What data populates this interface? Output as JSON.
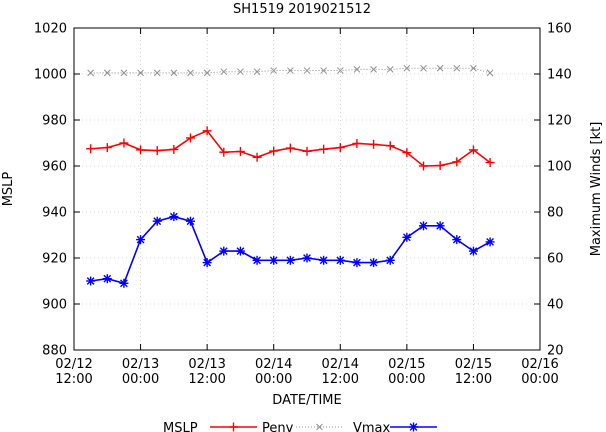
{
  "chart_data": {
    "type": "line",
    "title": "SH1519 2019021512",
    "xlabel": "DATE/TIME",
    "ylabel_left": "MSLP",
    "ylabel_right": "Maximum Winds [kt]",
    "ylim_left": [
      880,
      1020
    ],
    "ylim_right": [
      20,
      160
    ],
    "xlim": [
      0,
      84
    ],
    "yticks_left": [
      880,
      900,
      920,
      940,
      960,
      980,
      1000,
      1020
    ],
    "yticks_right": [
      20,
      40,
      60,
      80,
      100,
      120,
      140,
      160
    ],
    "xticks": [
      {
        "t": 0,
        "line1": "02/12",
        "line2": "12:00"
      },
      {
        "t": 12,
        "line1": "02/13",
        "line2": "00:00"
      },
      {
        "t": 24,
        "line1": "02/13",
        "line2": "12:00"
      },
      {
        "t": 36,
        "line1": "02/14",
        "line2": "00:00"
      },
      {
        "t": 48,
        "line1": "02/14",
        "line2": "12:00"
      },
      {
        "t": 60,
        "line1": "02/15",
        "line2": "00:00"
      },
      {
        "t": 72,
        "line1": "02/15",
        "line2": "12:00"
      },
      {
        "t": 84,
        "line1": "02/16",
        "line2": "00:00"
      }
    ],
    "x": [
      3,
      6,
      9,
      12,
      15,
      18,
      21,
      24,
      27,
      30,
      33,
      36,
      39,
      42,
      45,
      48,
      51,
      54,
      57,
      60,
      63,
      66,
      69,
      72,
      75
    ],
    "series": [
      {
        "name": "MSLP",
        "axis": "left",
        "color": "#ff0000",
        "marker": "plus",
        "dashed": false,
        "values": [
          967.5,
          968,
          970,
          967,
          966.7,
          967.2,
          972.2,
          975.3,
          966,
          966.3,
          963.8,
          966.5,
          967.8,
          966.4,
          967.3,
          968,
          969.8,
          969.4,
          968.8,
          965.8,
          960,
          960.2,
          961.8,
          967,
          961.5
        ]
      },
      {
        "name": "Penv",
        "axis": "left",
        "color": "#909090",
        "marker": "x",
        "dashed": true,
        "values": [
          1000.5,
          1000.5,
          1000.5,
          1000.5,
          1000.5,
          1000.5,
          1000.5,
          1000.5,
          1001,
          1001,
          1001,
          1001.5,
          1001.5,
          1001.5,
          1001.5,
          1001.5,
          1002,
          1002,
          1002,
          1002.5,
          1002.5,
          1002.5,
          1002.5,
          1002.5,
          1000.5
        ]
      },
      {
        "name": "Vmax",
        "axis": "right",
        "color": "#0000ff",
        "marker": "star",
        "dashed": false,
        "values": [
          50,
          51,
          49,
          68,
          76,
          78,
          76,
          58,
          63,
          63,
          59,
          59,
          59,
          60,
          59,
          59,
          58,
          58,
          59,
          69,
          74,
          74,
          68,
          63,
          67
        ]
      }
    ],
    "legend": {
      "placement": "bottom",
      "labels": [
        "MSLP",
        "Penv",
        "Vmax"
      ]
    }
  }
}
